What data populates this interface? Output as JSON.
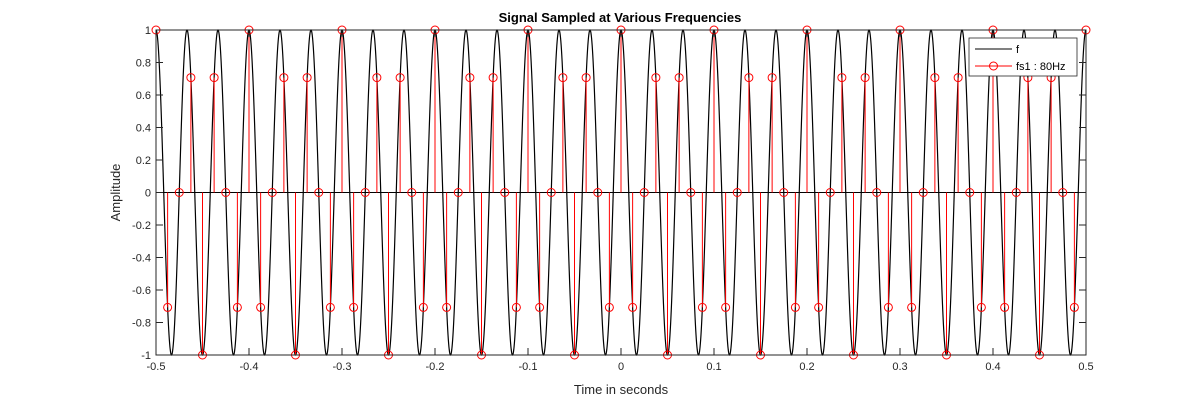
{
  "chart_data": {
    "type": "line",
    "title": "Signal Sampled at Various Frequencies",
    "xlabel": "Time in seconds",
    "ylabel": "Amplitude",
    "xlim": [
      -0.5,
      0.5
    ],
    "ylim": [
      -1,
      1
    ],
    "x_ticks": [
      "-0.5",
      "-0.4",
      "-0.3",
      "-0.2",
      "-0.1",
      "0",
      "0.1",
      "0.2",
      "0.3",
      "0.4",
      "0.5"
    ],
    "y_ticks": [
      "-1",
      "-0.8",
      "-0.6",
      "-0.4",
      "-0.2",
      "0",
      "0.2",
      "0.4",
      "0.6",
      "0.8",
      "1"
    ],
    "grid": false,
    "legend_position": "top-right",
    "series": [
      {
        "name": "f",
        "kind": "continuous",
        "function": "cos",
        "frequency_hz": 30,
        "amplitude": 1,
        "color": "#000000"
      },
      {
        "name": "fs1 : 80Hz",
        "kind": "stem",
        "sample_rate_hz": 80,
        "marker": "circle",
        "color": "#ff0000"
      }
    ]
  }
}
